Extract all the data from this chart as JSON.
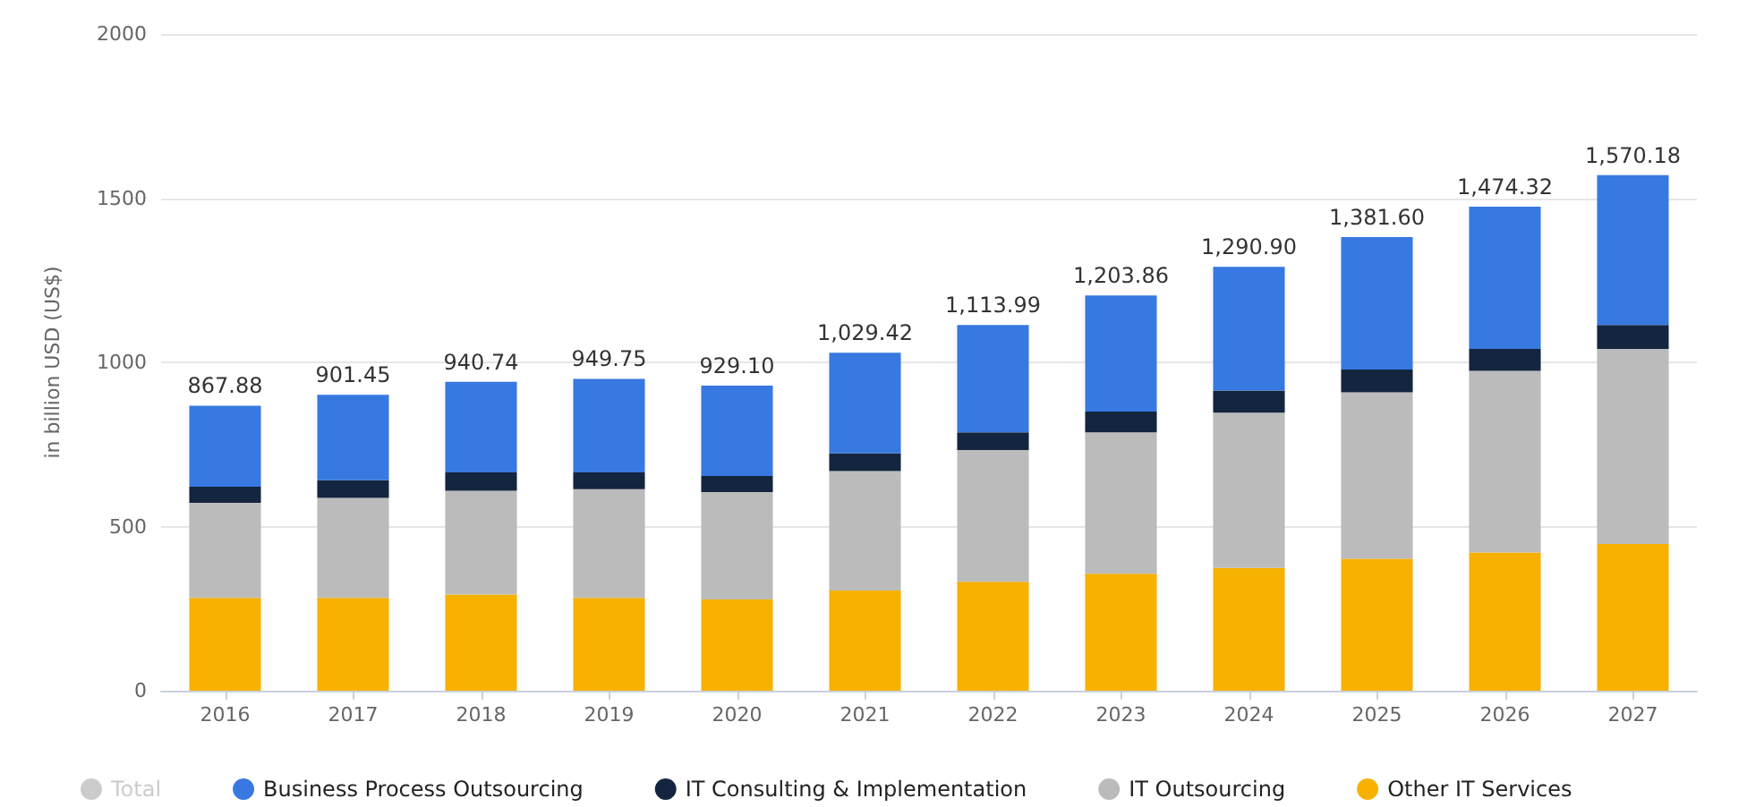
{
  "chart_data": {
    "type": "bar",
    "stacked": true,
    "ylabel": "in billion USD (US$)",
    "categories": [
      "2016",
      "2017",
      "2018",
      "2019",
      "2020",
      "2021",
      "2022",
      "2023",
      "2024",
      "2025",
      "2026",
      "2027"
    ],
    "series": [
      {
        "name": "Total",
        "color": "#cccccc",
        "values": [
          null,
          null,
          null,
          null,
          null,
          null,
          null,
          null,
          null,
          null,
          null,
          null
        ]
      },
      {
        "name": "Other IT Services",
        "color": "#f7b100",
        "values": [
          283,
          283,
          293,
          283,
          278,
          305,
          332,
          356,
          374,
          402,
          421,
          447
        ]
      },
      {
        "name": "IT Outsourcing",
        "color": "#bbbbbb",
        "values": [
          289,
          304,
          316,
          331,
          327,
          364,
          401,
          431,
          473,
          507,
          553,
          594
        ]
      },
      {
        "name": "IT Consulting & Implementation",
        "color": "#14253f",
        "values": [
          49,
          54,
          56,
          51,
          49,
          54,
          54,
          63,
          67,
          69,
          67,
          73
        ]
      },
      {
        "name": "Business Process Outsourcing",
        "color": "#3779e0",
        "values": [
          246.88,
          260.45,
          275.74,
          284.75,
          275.1,
          306.42,
          326.99,
          353.86,
          376.9,
          403.6,
          433.32,
          456.18
        ]
      }
    ],
    "totals": [
      "867.88",
      "901.45",
      "940.74",
      "949.75",
      "929.10",
      "1,029.42",
      "1,113.99",
      "1,203.86",
      "1,290.90",
      "1,381.60",
      "1,474.32",
      "1,570.18"
    ],
    "ylim": [
      0,
      2000
    ],
    "yticks": [
      0,
      500,
      1000,
      1500,
      2000
    ],
    "grid": "y",
    "legend": "bottom left"
  }
}
